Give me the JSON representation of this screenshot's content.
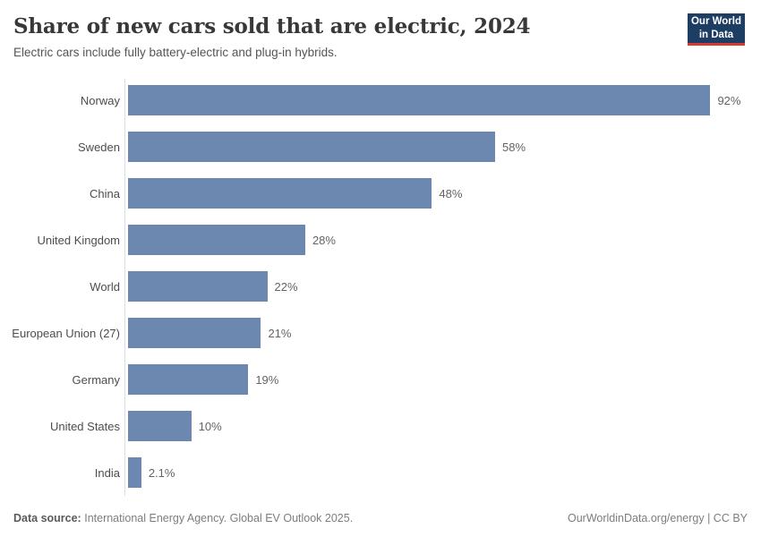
{
  "header": {
    "title": "Share of new cars sold that are electric, 2024",
    "subtitle": "Electric cars include fully battery-electric and plug-in hybrids.",
    "logo": {
      "line1": "Our World",
      "line2": "in Data"
    }
  },
  "chart_data": {
    "type": "bar",
    "orientation": "horizontal",
    "title": "Share of new cars sold that are electric, 2024",
    "subtitle": "Electric cars include fully battery-electric and plug-in hybrids.",
    "categories": [
      "Norway",
      "Sweden",
      "China",
      "United Kingdom",
      "World",
      "European Union (27)",
      "Germany",
      "United States",
      "India"
    ],
    "values": [
      92,
      58,
      48,
      28,
      22,
      21,
      19,
      10,
      2.1
    ],
    "value_labels": [
      "92%",
      "58%",
      "48%",
      "28%",
      "22%",
      "21%",
      "19%",
      "10%",
      "2.1%"
    ],
    "unit": "%",
    "xlabel": "",
    "ylabel": "",
    "xlim": [
      0,
      100
    ],
    "grid": false,
    "legend": false,
    "bar_color": "#6c87b0"
  },
  "footer": {
    "datasource_label": "Data source:",
    "datasource_text": "International Energy Agency. Global EV Outlook 2025.",
    "link_text": "OurWorldinData.org/energy | CC BY"
  },
  "colors": {
    "bar": "#6c87b0",
    "title": "#383838",
    "subtitle": "#555555",
    "label": "#4d4d4d",
    "value": "#636363",
    "axis": "#dddddd",
    "footer": "#7d7d7d",
    "footer_label": "#5a5a5a",
    "logo_bg": "#1d3d63",
    "logo_underline": "#d73a32"
  }
}
